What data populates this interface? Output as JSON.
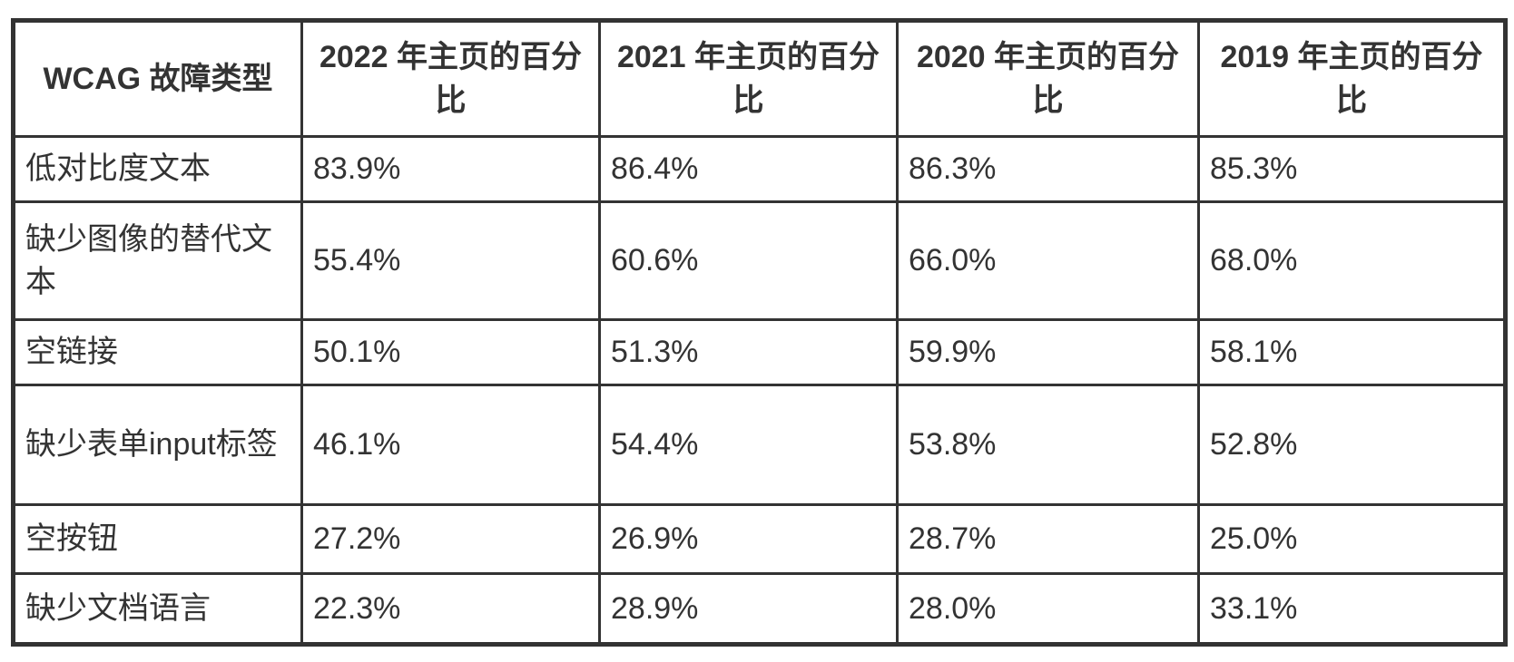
{
  "colors": {
    "border": "#333333",
    "text": "#333333",
    "background": "#ffffff"
  },
  "table": {
    "headers": [
      "WCAG 故障类型",
      "2022 年主页的百分比",
      "2021 年主页的百分比",
      "2020 年主页的百分比",
      "2019 年主页的百分比"
    ],
    "rows": [
      [
        "低对比度文本",
        "83.9%",
        "86.4%",
        "86.3%",
        "85.3%"
      ],
      [
        "缺少图像的替代文本",
        "55.4%",
        "60.6%",
        "66.0%",
        "68.0%"
      ],
      [
        "空链接",
        "50.1%",
        "51.3%",
        "59.9%",
        "58.1%"
      ],
      [
        "缺少表单input标签",
        "46.1%",
        "54.4%",
        "53.8%",
        "52.8%"
      ],
      [
        "空按钮",
        "27.2%",
        "26.9%",
        "28.7%",
        "25.0%"
      ],
      [
        "缺少文档语言",
        "22.3%",
        "28.9%",
        "28.0%",
        "33.1%"
      ]
    ]
  },
  "chart_data": {
    "type": "table",
    "title": "",
    "columns": [
      "WCAG 故障类型",
      "2022 年主页的百分比",
      "2021 年主页的百分比",
      "2020 年主页的百分比",
      "2019 年主页的百分比"
    ],
    "categories": [
      "低对比度文本",
      "缺少图像的替代文本",
      "空链接",
      "缺少表单input标签",
      "空按钮",
      "缺少文档语言"
    ],
    "series": [
      {
        "name": "2022 年主页的百分比",
        "values": [
          83.9,
          55.4,
          50.1,
          46.1,
          27.2,
          22.3
        ]
      },
      {
        "name": "2021 年主页的百分比",
        "values": [
          86.4,
          60.6,
          51.3,
          54.4,
          26.9,
          28.9
        ]
      },
      {
        "name": "2020 年主页的百分比",
        "values": [
          86.3,
          66.0,
          59.9,
          53.8,
          28.7,
          28.0
        ]
      },
      {
        "name": "2019 年主页的百分比",
        "values": [
          85.3,
          68.0,
          58.1,
          52.8,
          25.0,
          33.1
        ]
      }
    ],
    "unit": "%",
    "layout_hints": {
      "grid": "full-borders",
      "header_row": "bold-centered",
      "data_alignment": "left"
    }
  }
}
